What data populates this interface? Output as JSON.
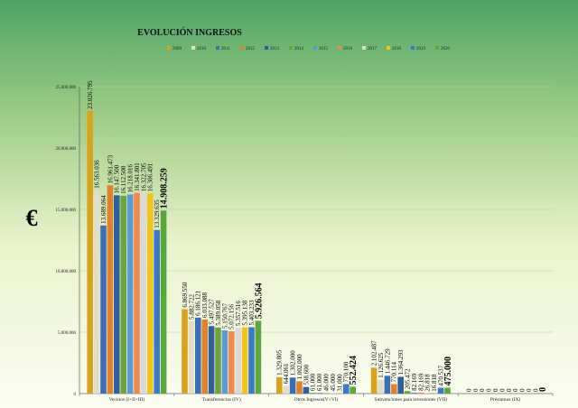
{
  "chart_data": {
    "type": "bar",
    "title": "EVOLUCIÓN INGRESOS",
    "ylabel": "€",
    "xlabel": "",
    "ylim": [
      0,
      25000000
    ],
    "yticks": [
      "0",
      "5.000.000",
      "10.000.000",
      "15.000.000",
      "20.000.000",
      "25.000.000"
    ],
    "yticks_values": [
      0,
      5000000,
      10000000,
      15000000,
      20000000,
      25000000
    ],
    "grid": true,
    "legend_position": "top-right",
    "categories": [
      "Vecinos (I+II+III)",
      "Transferencias (IV)",
      "Otros Ingresos(V+VI)",
      "Subvenciones para inversiones (VII)",
      "Préstamos (IX)"
    ],
    "series": [
      {
        "name": "2009",
        "color": "#d9a21b",
        "values": [
          23026795,
          6869550,
          1329805,
          2102487,
          0
        ],
        "labels": [
          "23.026.795",
          "6.869.550",
          "1.329.805",
          "2.102.487",
          "0"
        ]
      },
      {
        "name": "2010",
        "color": "#e2dcc8",
        "values": [
          16563036,
          5882722,
          644061,
          1126625,
          0
        ],
        "labels": [
          "16.563.036",
          "5.882.722",
          "644.061",
          "1.126.625",
          "0"
        ]
      },
      {
        "name": "2011",
        "color": "#3a6fb5",
        "values": [
          13689064,
          6186121,
          1302000,
          1446729,
          0
        ],
        "labels": [
          "13.689.064",
          "6.186.121",
          "1.302.000",
          "1.446.729",
          "0"
        ]
      },
      {
        "name": "2012",
        "color": "#e0822b",
        "values": [
          16961473,
          6033088,
          1002000,
          770114,
          0
        ],
        "labels": [
          "16.961.473",
          "6.033.088",
          "1.002.000",
          "770.114",
          "0"
        ]
      },
      {
        "name": "2013",
        "color": "#2f5f9e",
        "values": [
          16147500,
          5497527,
          538600,
          1364293,
          0
        ],
        "labels": [
          "16.147.500",
          "5.497.527",
          "538.600",
          "1.364.293",
          "0"
        ]
      },
      {
        "name": "2014",
        "color": "#6fa33a",
        "values": [
          16112500,
          5389058,
          61000,
          205472,
          0
        ],
        "labels": [
          "16.112.500",
          "5.389.058",
          "61.000",
          "205.472",
          "0"
        ]
      },
      {
        "name": "2015",
        "color": "#5b9bd5",
        "values": [
          16218016,
          5150767,
          61000,
          82169,
          0
        ],
        "labels": [
          "16.218.016",
          "5.150.767",
          "61.000",
          "82.169",
          "0"
        ]
      },
      {
        "name": "2016",
        "color": "#f08a4b",
        "values": [
          16341801,
          5072156,
          46000,
          82169,
          0
        ],
        "labels": [
          "16.341.801",
          "5.072.156",
          "46.000",
          "82.169",
          "0"
        ]
      },
      {
        "name": "2017",
        "color": "#d9d9d9",
        "values": [
          16322705,
          5357516,
          45000,
          26818,
          0
        ],
        "labels": [
          "16.322.705",
          "5.357.516",
          "45.000",
          "26.818",
          "0"
        ]
      },
      {
        "name": "2018",
        "color": "#f2c318",
        "values": [
          16306491,
          5395138,
          31000,
          16818,
          0
        ],
        "labels": [
          "16.306.491",
          "5.395.138",
          "31.000",
          "16.818",
          "0"
        ]
      },
      {
        "name": "2019",
        "color": "#3c78c8",
        "values": [
          13329635,
          5403233,
          770100,
          470537,
          0
        ],
        "labels": [
          "13.329.635",
          "5.403.233",
          "770.100",
          "470.537",
          "0"
        ]
      },
      {
        "name": "2020",
        "color": "#5aa73b",
        "values": [
          14908259,
          5926564,
          552424,
          475000,
          0
        ],
        "labels": [
          "14.908.259",
          "5.926.564",
          "552.424",
          "475.000",
          "0"
        ]
      }
    ]
  }
}
